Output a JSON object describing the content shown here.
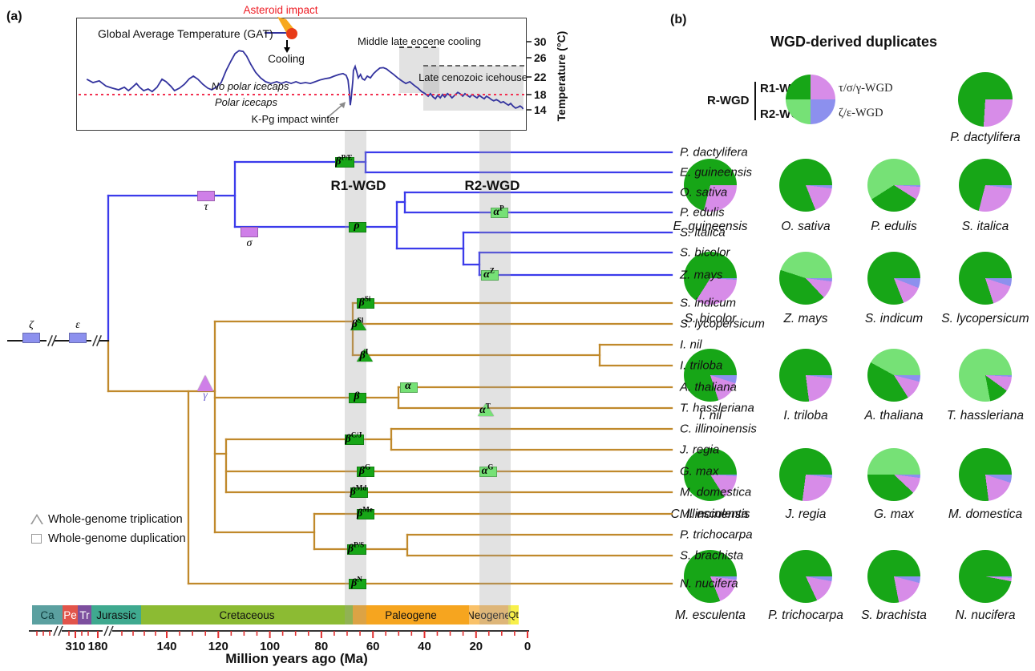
{
  "panel_a": {
    "tag": "(a)",
    "gat_chart": {
      "legend_label": "Global Average Temperature (GAT)",
      "impact_title": "Asteroid impact",
      "cooling_label": "Cooling",
      "eocene_label": "Middle late eocene cooling",
      "icehouse_label": "Late cenozoic icehouse",
      "no_icecaps_label": "No polar icecaps",
      "icecaps_label": "Polar icecaps",
      "kpg_label": "K-Pg impact winter",
      "y_axis_label": "Temperature (°C)",
      "y_ticks": [
        "30",
        "26",
        "22",
        "18",
        "14"
      ]
    },
    "r1_label": "R1-WGD",
    "r2_label": "R2-WGD",
    "species": [
      "P. dactylifera",
      "E. guineensis",
      "O. sativa",
      "P. edulis",
      "S. italica",
      "S. bicolor",
      "Z. mays",
      "S. indicum",
      "S. lycopersicum",
      "I. nil",
      "I. triloba",
      "A. thaliana",
      "T. hassleriana",
      "C. illinoinensis",
      "J. regia",
      "G. max",
      "M. domestica",
      "M. esculenta",
      "P. trichocarpa",
      "S. brachista",
      "N. nucifera"
    ],
    "events": {
      "zeta": {
        "base": "ζ",
        "sup": ""
      },
      "epsilon": {
        "base": "ε",
        "sup": ""
      },
      "tau": {
        "base": "τ",
        "sup": ""
      },
      "sigma": {
        "base": "σ",
        "sup": ""
      },
      "gamma": {
        "base": "γ",
        "sup": ""
      },
      "bPE": {
        "base": "β",
        "sup": "P/E"
      },
      "rho": {
        "base": "ρ",
        "sup": ""
      },
      "aP": {
        "base": "α",
        "sup": "P"
      },
      "aZ": {
        "base": "α",
        "sup": "Z"
      },
      "bSi": {
        "base": "β",
        "sup": "Si"
      },
      "bSl": {
        "base": "β",
        "sup": "Sl"
      },
      "bI": {
        "base": "β",
        "sup": "I"
      },
      "beta": {
        "base": "β",
        "sup": ""
      },
      "alpha": {
        "base": "α",
        "sup": ""
      },
      "aT": {
        "base": "α",
        "sup": "T"
      },
      "bCJ": {
        "base": "β",
        "sup": "C/J"
      },
      "bG": {
        "base": "β",
        "sup": "G"
      },
      "aG": {
        "base": "α",
        "sup": "G"
      },
      "bMd": {
        "base": "β",
        "sup": "Md"
      },
      "bMe": {
        "base": "β",
        "sup": "Me"
      },
      "bPS": {
        "base": "β",
        "sup": "P/S"
      },
      "bN": {
        "base": "β",
        "sup": "N"
      }
    },
    "wgd_legend": [
      {
        "shape": "triangle",
        "label": "Whole-genome triplication"
      },
      {
        "shape": "square",
        "label": "Whole-genome duplication"
      }
    ],
    "timescale": {
      "periods": [
        {
          "abbr": "Ca",
          "color": "#5ba0a0",
          "text_color": "#0e3b3b"
        },
        {
          "abbr": "Pe",
          "color": "#e2544a",
          "text_color": "#ffffff"
        },
        {
          "abbr": "Tr",
          "color": "#7d4f9e",
          "text_color": "#ffffff"
        },
        {
          "abbr": "Jurassic",
          "color": "#3fa98f",
          "text_color": "#111111"
        },
        {
          "abbr": "Cretaceous",
          "color": "#8cbb33",
          "text_color": "#111111"
        },
        {
          "abbr": "Paleogene",
          "color": "#f6a51f",
          "text_color": "#111111"
        },
        {
          "abbr": "Neogene",
          "color": "#f9c169",
          "text_color": "#111111"
        },
        {
          "abbr": "Qt",
          "color": "#f8f04a",
          "text_color": "#111111"
        }
      ],
      "axis_ticks": [
        "310",
        "180",
        "140",
        "120",
        "100",
        "80",
        "60",
        "40",
        "20",
        "0"
      ],
      "xlabel": "Million years ago (Ma)"
    }
  },
  "panel_b": {
    "tag": "(b)",
    "title": "WGD-derived duplicates",
    "legend": {
      "r_wgd": "R-WGD",
      "r1": "R1-WGD",
      "r2": "R2-WGD",
      "tsg": "τ/σ/γ-WGD",
      "ze": "ζ/ε-WGD"
    }
  },
  "chart_data": [
    {
      "type": "pie",
      "title": "WGD-derived duplicates",
      "legend_entries": [
        "R1-WGD",
        "R2-WGD",
        "τ/σ/γ-WGD",
        "ζ/ε-WGD"
      ],
      "colors": {
        "r1": "#17a617",
        "r2": "#76e176",
        "tsg": "#d78ce8",
        "ze": "#8c90ee"
      },
      "units": "percent of WGD-derived duplicates",
      "series": [
        {
          "name": "P. dactylifera",
          "r1": 74,
          "r2": 0,
          "tsg": 26,
          "ze": 0
        },
        {
          "name": "E. guineensis",
          "r1": 71,
          "r2": 0,
          "tsg": 29,
          "ze": 0
        },
        {
          "name": "O. sativa",
          "r1": 81,
          "r2": 0,
          "tsg": 17,
          "ze": 2
        },
        {
          "name": "P. edulis",
          "r1": 32,
          "r2": 59,
          "tsg": 8,
          "ze": 1
        },
        {
          "name": "S. italica",
          "r1": 71,
          "r2": 0,
          "tsg": 27,
          "ze": 2
        },
        {
          "name": "S. bicolor",
          "r1": 66,
          "r2": 0,
          "tsg": 33,
          "ze": 1
        },
        {
          "name": "Z. mays",
          "r1": 42,
          "r2": 45,
          "tsg": 11,
          "ze": 2
        },
        {
          "name": "S. indicum",
          "r1": 81,
          "r2": 0,
          "tsg": 13,
          "ze": 6
        },
        {
          "name": "S. lycopersicum",
          "r1": 80,
          "r2": 0,
          "tsg": 15,
          "ze": 5
        },
        {
          "name": "I. nil",
          "r1": 80,
          "r2": 0,
          "tsg": 15,
          "ze": 5
        },
        {
          "name": "I. triloba",
          "r1": 77,
          "r2": 0,
          "tsg": 21,
          "ze": 2
        },
        {
          "name": "A. thaliana",
          "r1": 42,
          "r2": 42,
          "tsg": 12,
          "ze": 4
        },
        {
          "name": "T. hassleriana",
          "r1": 12,
          "r2": 78,
          "tsg": 9,
          "ze": 1
        },
        {
          "name": "C. illinoinensis",
          "r1": 84,
          "r2": 0,
          "tsg": 15,
          "ze": 1
        },
        {
          "name": "J. regia",
          "r1": 73,
          "r2": 0,
          "tsg": 25,
          "ze": 2
        },
        {
          "name": "G. max",
          "r1": 38,
          "r2": 50,
          "tsg": 10,
          "ze": 2
        },
        {
          "name": "M. domestica",
          "r1": 77,
          "r2": 0,
          "tsg": 18,
          "ze": 5
        },
        {
          "name": "M. esculenta",
          "r1": 81,
          "r2": 0,
          "tsg": 17,
          "ze": 2
        },
        {
          "name": "P. trichocarpa",
          "r1": 82,
          "r2": 0,
          "tsg": 15,
          "ze": 3
        },
        {
          "name": "S. brachista",
          "r1": 78,
          "r2": 0,
          "tsg": 18,
          "ze": 4
        },
        {
          "name": "N. nucifera",
          "r1": 97,
          "r2": 0,
          "tsg": 2,
          "ze": 1
        }
      ]
    },
    {
      "type": "line",
      "title": "Global Average Temperature (GAT)",
      "ylabel": "Temperature (°C)",
      "ylim": [
        13,
        31
      ],
      "yticks": [
        30,
        26,
        22,
        18,
        14
      ],
      "reference_line_c": 18,
      "line_color": "#33339e",
      "x_units": "relative position along time axis (0 = left/oldest, 1 = right/present)",
      "points": [
        [
          0.02,
          21.2
        ],
        [
          0.034,
          20.4
        ],
        [
          0.048,
          20.8
        ],
        [
          0.063,
          19.6
        ],
        [
          0.077,
          19.1
        ],
        [
          0.091,
          18.7
        ],
        [
          0.104,
          19.3
        ],
        [
          0.113,
          18.5
        ],
        [
          0.122,
          19.3
        ],
        [
          0.131,
          20.2
        ],
        [
          0.138,
          19.3
        ],
        [
          0.147,
          18.5
        ],
        [
          0.157,
          18.9
        ],
        [
          0.166,
          18.3
        ],
        [
          0.177,
          19.3
        ],
        [
          0.188,
          21.2
        ],
        [
          0.197,
          20.6
        ],
        [
          0.208,
          19.5
        ],
        [
          0.216,
          18.5
        ],
        [
          0.227,
          19.1
        ],
        [
          0.238,
          20.0
        ],
        [
          0.249,
          21.3
        ],
        [
          0.258,
          21.9
        ],
        [
          0.268,
          21.2
        ],
        [
          0.279,
          20.0
        ],
        [
          0.29,
          19.1
        ],
        [
          0.299,
          18.7
        ],
        [
          0.309,
          19.3
        ],
        [
          0.32,
          20.4
        ],
        [
          0.331,
          23.2
        ],
        [
          0.342,
          25.5
        ],
        [
          0.351,
          27.2
        ],
        [
          0.36,
          27.9
        ],
        [
          0.369,
          27.7
        ],
        [
          0.377,
          26.6
        ],
        [
          0.386,
          24.7
        ],
        [
          0.397,
          22.8
        ],
        [
          0.408,
          21.5
        ],
        [
          0.419,
          20.6
        ],
        [
          0.431,
          20.2
        ],
        [
          0.444,
          20.6
        ],
        [
          0.454,
          20.2
        ],
        [
          0.465,
          20.6
        ],
        [
          0.476,
          20.2
        ],
        [
          0.487,
          20.6
        ],
        [
          0.497,
          20.2
        ],
        [
          0.508,
          20.4
        ],
        [
          0.519,
          20.2
        ],
        [
          0.53,
          20.6
        ],
        [
          0.54,
          21.0
        ],
        [
          0.551,
          21.3
        ],
        [
          0.562,
          21.5
        ],
        [
          0.572,
          21.9
        ],
        [
          0.583,
          22.3
        ],
        [
          0.592,
          22.5
        ],
        [
          0.599,
          22.1
        ],
        [
          0.603,
          21.0
        ],
        [
          0.606,
          18.1
        ],
        [
          0.608,
          15.1
        ],
        [
          0.61,
          16.6
        ],
        [
          0.614,
          21.0
        ],
        [
          0.615,
          23.2
        ],
        [
          0.619,
          24.2
        ],
        [
          0.623,
          22.7
        ],
        [
          0.626,
          21.5
        ],
        [
          0.631,
          22.3
        ],
        [
          0.635,
          21.3
        ],
        [
          0.64,
          21.0
        ],
        [
          0.646,
          21.9
        ],
        [
          0.653,
          21.5
        ],
        [
          0.66,
          22.5
        ],
        [
          0.667,
          23.2
        ],
        [
          0.674,
          23.8
        ],
        [
          0.682,
          23.9
        ],
        [
          0.689,
          23.6
        ],
        [
          0.696,
          23.0
        ],
        [
          0.705,
          22.3
        ],
        [
          0.714,
          21.5
        ],
        [
          0.723,
          20.8
        ],
        [
          0.732,
          20.2
        ],
        [
          0.741,
          20.6
        ],
        [
          0.75,
          19.8
        ],
        [
          0.759,
          19.1
        ],
        [
          0.767,
          18.3
        ],
        [
          0.775,
          17.8
        ],
        [
          0.782,
          17.2
        ],
        [
          0.787,
          17.8
        ],
        [
          0.793,
          17.0
        ],
        [
          0.798,
          16.6
        ],
        [
          0.803,
          17.4
        ],
        [
          0.809,
          16.8
        ],
        [
          0.814,
          17.6
        ],
        [
          0.819,
          17.0
        ],
        [
          0.825,
          17.8
        ],
        [
          0.83,
          17.4
        ],
        [
          0.835,
          16.8
        ],
        [
          0.843,
          17.6
        ],
        [
          0.848,
          18.1
        ],
        [
          0.853,
          17.8
        ],
        [
          0.859,
          17.2
        ],
        [
          0.864,
          17.8
        ],
        [
          0.869,
          17.4
        ],
        [
          0.875,
          17.0
        ],
        [
          0.88,
          17.6
        ],
        [
          0.885,
          17.2
        ],
        [
          0.891,
          16.8
        ],
        [
          0.896,
          17.4
        ],
        [
          0.901,
          17.0
        ],
        [
          0.907,
          16.6
        ],
        [
          0.912,
          17.2
        ],
        [
          0.918,
          16.8
        ],
        [
          0.923,
          16.4
        ],
        [
          0.928,
          16.1
        ],
        [
          0.934,
          16.4
        ],
        [
          0.939,
          16.1
        ],
        [
          0.944,
          15.7
        ],
        [
          0.95,
          15.9
        ],
        [
          0.955,
          15.5
        ],
        [
          0.961,
          15.1
        ],
        [
          0.966,
          15.5
        ],
        [
          0.971,
          14.9
        ],
        [
          0.977,
          14.4
        ],
        [
          0.982,
          14.6
        ],
        [
          0.987,
          14.9
        ],
        [
          0.991,
          14.6
        ],
        [
          0.994,
          14.2
        ]
      ]
    }
  ],
  "colors": {
    "monocot_branch": "#3b3beb",
    "eudicot_branch": "#c0892b",
    "dark_green_wgd": "#17a617",
    "light_green_wgd": "#76e176",
    "orchid_wgd": "#cf7fe8",
    "periwinkle_wgd": "#8c90ee",
    "red_dotted_line": "#f23050",
    "tick_red": "#e03030",
    "asteroid_red": "#ee1c24"
  }
}
